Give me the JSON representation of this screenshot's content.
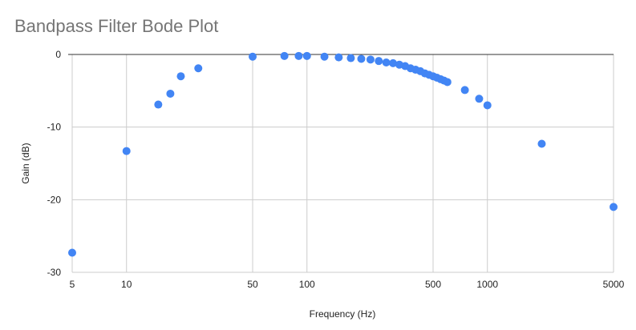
{
  "chart_data": {
    "type": "scatter",
    "title": "Bandpass Filter Bode Plot",
    "xlabel": "Frequency (Hz)",
    "ylabel": "Gain (dB)",
    "xscale": "log",
    "xlim": [
      5,
      5000
    ],
    "ylim": [
      -30,
      0
    ],
    "x_ticks": [
      5,
      10,
      50,
      100,
      500,
      1000,
      5000
    ],
    "y_ticks": [
      0,
      -10,
      -20,
      -30
    ],
    "grid": true,
    "legend": "none",
    "marker_color": "#4285f4",
    "points": [
      {
        "x": 5,
        "y": -27.3
      },
      {
        "x": 10,
        "y": -13.3
      },
      {
        "x": 15,
        "y": -6.9
      },
      {
        "x": 17.5,
        "y": -5.4
      },
      {
        "x": 20,
        "y": -3.0
      },
      {
        "x": 25,
        "y": -1.9
      },
      {
        "x": 50,
        "y": -0.3
      },
      {
        "x": 75,
        "y": -0.2
      },
      {
        "x": 90,
        "y": -0.2
      },
      {
        "x": 100,
        "y": -0.2
      },
      {
        "x": 125,
        "y": -0.3
      },
      {
        "x": 150,
        "y": -0.4
      },
      {
        "x": 175,
        "y": -0.5
      },
      {
        "x": 200,
        "y": -0.6
      },
      {
        "x": 225,
        "y": -0.7
      },
      {
        "x": 250,
        "y": -0.9
      },
      {
        "x": 275,
        "y": -1.1
      },
      {
        "x": 300,
        "y": -1.2
      },
      {
        "x": 325,
        "y": -1.4
      },
      {
        "x": 350,
        "y": -1.6
      },
      {
        "x": 375,
        "y": -1.9
      },
      {
        "x": 400,
        "y": -2.1
      },
      {
        "x": 425,
        "y": -2.3
      },
      {
        "x": 450,
        "y": -2.6
      },
      {
        "x": 475,
        "y": -2.8
      },
      {
        "x": 500,
        "y": -3.0
      },
      {
        "x": 525,
        "y": -3.2
      },
      {
        "x": 550,
        "y": -3.4
      },
      {
        "x": 575,
        "y": -3.6
      },
      {
        "x": 600,
        "y": -3.8
      },
      {
        "x": 750,
        "y": -4.9
      },
      {
        "x": 900,
        "y": -6.1
      },
      {
        "x": 1000,
        "y": -7.0
      },
      {
        "x": 2000,
        "y": -12.3
      },
      {
        "x": 5000,
        "y": -21.0
      }
    ]
  }
}
